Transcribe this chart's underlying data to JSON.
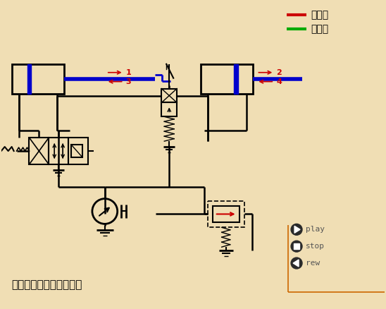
{
  "bg_color": "#f0deb4",
  "line_color": "#000000",
  "blue_color": "#0000cc",
  "red_color": "#cc0000",
  "green_color": "#00aa00",
  "orange_color": "#cc6600",
  "title_text": "行程阀控制顺序动作回路",
  "legend_items": [
    {
      "label": "进油路",
      "color": "#cc0000"
    },
    {
      "label": "回油路",
      "color": "#00aa00"
    }
  ],
  "play_stop_rew": [
    "play",
    "stop",
    "rew"
  ]
}
